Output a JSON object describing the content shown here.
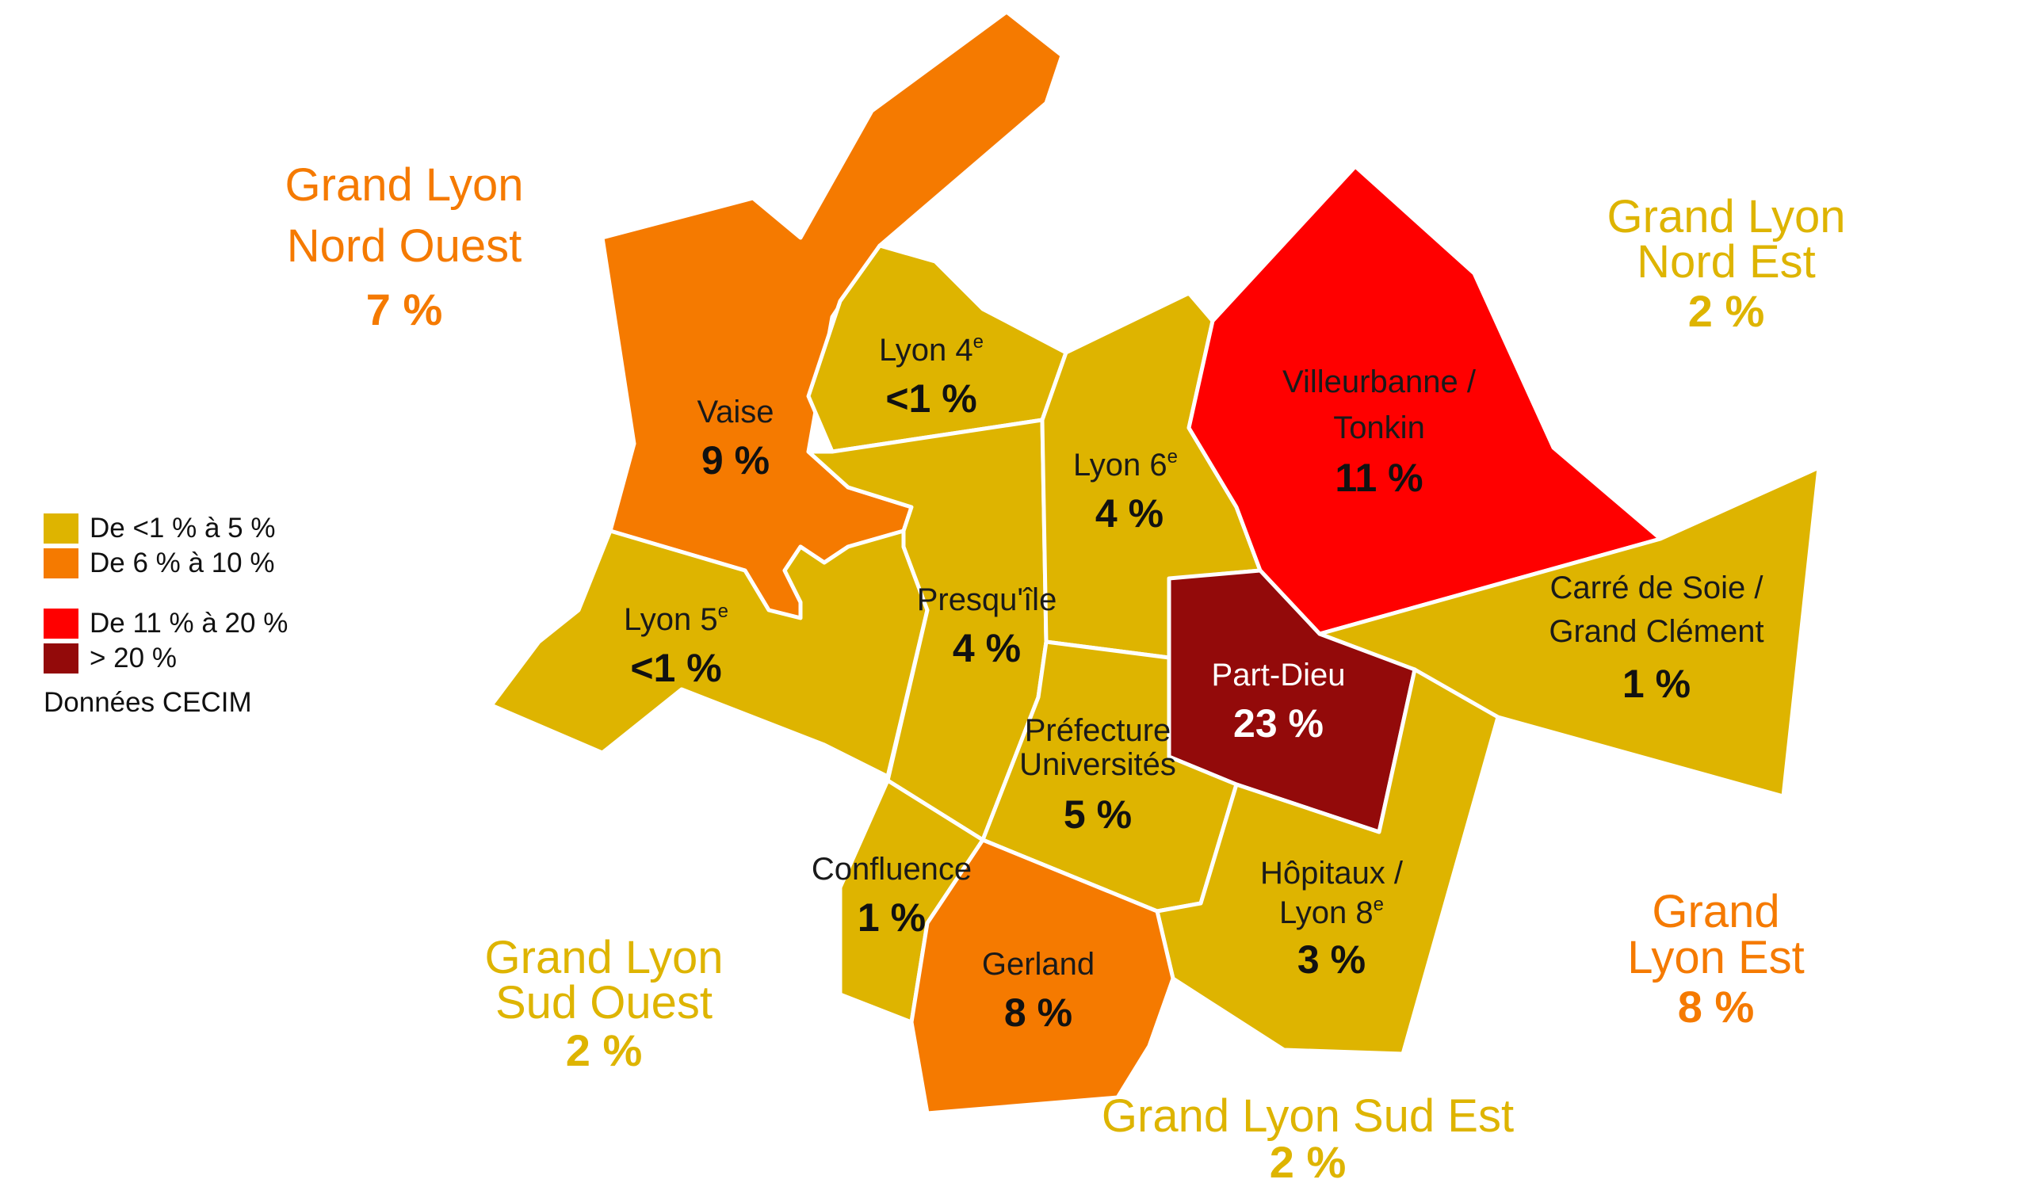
{
  "colors": {
    "low": "#DEB400",
    "mid": "#F57A00",
    "high": "#FF0000",
    "top": "#930A0A"
  },
  "legend": {
    "items": [
      {
        "label": "De <1 % à 5 %",
        "color": "#DEB400"
      },
      {
        "label": "De 6 % à 10 %",
        "color": "#F57A00"
      },
      {
        "label": "De 11 % à 20 %",
        "color": "#FF0000"
      },
      {
        "label": "> 20 %",
        "color": "#930A0A"
      }
    ],
    "source": "Données CECIM"
  },
  "zones": [
    {
      "id": "vaise",
      "name": "Vaise",
      "sup": "",
      "value": "9 %",
      "class": "mid"
    },
    {
      "id": "lyon4",
      "name": "Lyon 4",
      "sup": "e",
      "value": "<1 %",
      "class": "low"
    },
    {
      "id": "lyon5",
      "name": "Lyon 5",
      "sup": "e",
      "value": "<1 %",
      "class": "low"
    },
    {
      "id": "presquile",
      "name": "Presqu'île",
      "sup": "",
      "value": "4 %",
      "class": "low"
    },
    {
      "id": "lyon6",
      "name": "Lyon 6",
      "sup": "e",
      "value": "4 %",
      "class": "low"
    },
    {
      "id": "villeurbanne",
      "name": "Villeurbanne /",
      "name2": "Tonkin",
      "sup": "",
      "value": "11 %",
      "class": "high"
    },
    {
      "id": "carre",
      "name": "Carré de Soie /",
      "name2": "Grand Clément",
      "sup": "",
      "value": "1 %",
      "class": "low"
    },
    {
      "id": "partdieu",
      "name": "Part-Dieu",
      "sup": "",
      "value": "23 %",
      "class": "top"
    },
    {
      "id": "prefecture",
      "name": "Préfecture",
      "name2": "Universités",
      "sup": "",
      "value": "5 %",
      "class": "low"
    },
    {
      "id": "confluence",
      "name": "Confluence",
      "sup": "",
      "value": "1 %",
      "class": "low"
    },
    {
      "id": "gerland",
      "name": "Gerland",
      "sup": "",
      "value": "8 %",
      "class": "mid"
    },
    {
      "id": "hopitaux",
      "name": "Hôpitaux /",
      "name2": "Lyon 8",
      "sup": "e",
      "value": "3 %",
      "class": "low"
    }
  ],
  "outer": [
    {
      "id": "nord-ouest",
      "lines": [
        "Grand Lyon",
        "Nord Ouest"
      ],
      "value": "7 %",
      "class": "mid"
    },
    {
      "id": "nord-est",
      "lines": [
        "Grand Lyon",
        "Nord Est"
      ],
      "value": "2 %",
      "class": "low"
    },
    {
      "id": "sud-ouest",
      "lines": [
        "Grand Lyon",
        "Sud Ouest"
      ],
      "value": "2 %",
      "class": "low"
    },
    {
      "id": "est",
      "lines": [
        "Grand",
        "Lyon Est"
      ],
      "value": "8 %",
      "class": "mid"
    },
    {
      "id": "sud-est",
      "lines": [
        "Grand Lyon Sud Est"
      ],
      "value": "2 %",
      "class": "low"
    }
  ]
}
